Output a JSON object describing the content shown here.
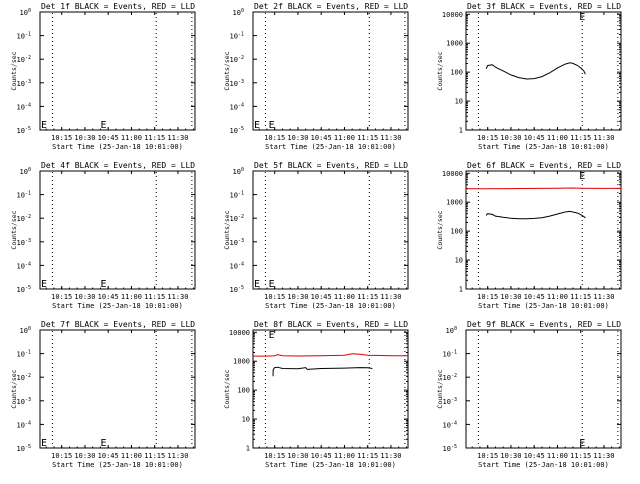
{
  "time_ticks": [
    "10:15",
    "10:30",
    "10:45",
    "11:00",
    "11:15",
    "11:30"
  ],
  "x_axis_label": "Start Time (25-Jan-18 10:01:00)",
  "y_axis_label": "Counts/sec",
  "empty_y_ticks": [
    "10^0",
    "10^-1",
    "10^-2",
    "10^-3",
    "10^-4",
    "10^-5"
  ],
  "log_y_ticks": [
    "1",
    "10",
    "100",
    "1000",
    "10000"
  ],
  "marker_label": "E",
  "colors": {
    "events": "#000000",
    "lld": "#dd0000"
  },
  "chart_data": [
    {
      "type": "line",
      "title": "Det 1f BLACK = Events, RED = LLD",
      "scale": "empty",
      "series": []
    },
    {
      "type": "line",
      "title": "Det 2f BLACK = Events, RED = LLD",
      "scale": "empty",
      "series": []
    },
    {
      "type": "line",
      "title": "Det 3f BLACK = Events, RED = LLD",
      "scale": "log",
      "ylim": [
        1,
        12000
      ],
      "x_unit": "time",
      "xlim": [
        "10:01",
        "11:41"
      ],
      "series": [
        {
          "color": "#000000",
          "x": [
            "10:14",
            "10:15",
            "10:18",
            "10:20",
            "10:22",
            "10:25",
            "10:30",
            "10:35",
            "10:40",
            "10:45",
            "10:50",
            "10:55",
            "11:00",
            "11:05",
            "11:08",
            "11:10",
            "11:13",
            "11:15",
            "11:17",
            "11:18"
          ],
          "values": [
            130,
            170,
            180,
            150,
            130,
            110,
            80,
            65,
            58,
            60,
            70,
            95,
            140,
            190,
            210,
            200,
            170,
            140,
            110,
            85
          ]
        }
      ]
    },
    {
      "type": "line",
      "title": "Det 4f BLACK = Events, RED = LLD",
      "scale": "empty",
      "series": []
    },
    {
      "type": "line",
      "title": "Det 5f BLACK = Events, RED = LLD",
      "scale": "empty",
      "series": []
    },
    {
      "type": "line",
      "title": "Det 6f BLACK = Events, RED = LLD",
      "scale": "log",
      "ylim": [
        1,
        12000
      ],
      "x_unit": "time",
      "xlim": [
        "10:01",
        "11:41"
      ],
      "series": [
        {
          "color": "#dd0000",
          "x": [
            "10:01",
            "10:15",
            "10:30",
            "10:45",
            "11:00",
            "11:10",
            "11:15",
            "11:30",
            "11:41"
          ],
          "values": [
            2900,
            2900,
            2950,
            3000,
            3050,
            3100,
            3050,
            3000,
            3000
          ]
        },
        {
          "color": "#000000",
          "x": [
            "10:14",
            "10:15",
            "10:18",
            "10:20",
            "10:25",
            "10:30",
            "10:35",
            "10:40",
            "10:45",
            "10:50",
            "10:55",
            "11:00",
            "11:05",
            "11:08",
            "11:10",
            "11:13",
            "11:15",
            "11:17",
            "11:18"
          ],
          "values": [
            350,
            400,
            380,
            330,
            300,
            280,
            270,
            270,
            275,
            290,
            330,
            390,
            460,
            480,
            460,
            420,
            370,
            320,
            290
          ]
        }
      ]
    },
    {
      "type": "line",
      "title": "Det 7f BLACK = Events, RED = LLD",
      "scale": "empty",
      "series": []
    },
    {
      "type": "line",
      "title": "Det 8f BLACK = Events, RED = LLD",
      "scale": "log",
      "ylim": [
        1,
        12000
      ],
      "x_unit": "time",
      "xlim": [
        "10:01",
        "11:41"
      ],
      "series": [
        {
          "color": "#dd0000",
          "x": [
            "10:01",
            "10:10",
            "10:15",
            "10:17",
            "10:20",
            "10:30",
            "10:45",
            "11:00",
            "11:05",
            "11:10",
            "11:15",
            "11:30",
            "11:41"
          ],
          "values": [
            1500,
            1500,
            1550,
            1700,
            1550,
            1520,
            1550,
            1600,
            1800,
            1750,
            1600,
            1550,
            1550
          ]
        },
        {
          "color": "#000000",
          "x": [
            "10:14",
            "10:14",
            "10:15",
            "10:17",
            "10:20",
            "10:30",
            "10:35",
            "10:36",
            "10:45",
            "11:00",
            "11:10",
            "11:15",
            "11:18"
          ],
          "values": [
            300,
            500,
            600,
            620,
            560,
            550,
            600,
            520,
            560,
            580,
            600,
            590,
            560
          ]
        }
      ]
    },
    {
      "type": "line",
      "title": "Det 9f BLACK = Events, RED = LLD",
      "scale": "empty",
      "series": []
    }
  ]
}
